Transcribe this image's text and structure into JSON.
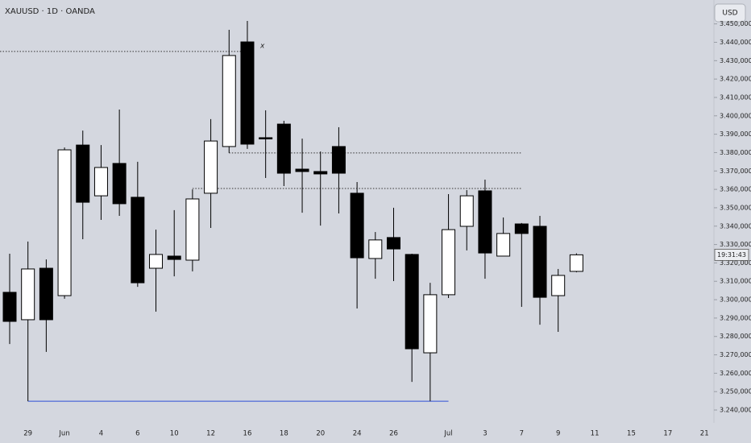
{
  "chart_data": {
    "type": "candlestick",
    "title": "XAUUSD · 1D · OANDA",
    "currency": "USD",
    "countdown": "19:31:43",
    "annotation": "x",
    "up_color": "#ffffff",
    "down_color": "#000000",
    "categories": [
      null,
      "29",
      null,
      "Jun",
      null,
      "4",
      null,
      "6",
      null,
      "10",
      null,
      "12",
      null,
      "16",
      null,
      "18",
      null,
      "20",
      null,
      "24",
      null,
      "26",
      null,
      null,
      "Jul",
      null,
      "3",
      null,
      "7",
      null,
      "9",
      null,
      "11",
      null,
      "15",
      null,
      "17",
      null,
      "21"
    ],
    "open": [
      3304.0,
      3289.1,
      3317.1,
      3302.2,
      3384.1,
      3356.5,
      3374.1,
      3355.7,
      3317.1,
      3323.7,
      3321.5,
      3357.9,
      3383.3,
      3440.2,
      3388.1,
      3395.5,
      3371.0,
      3369.7,
      3383.3,
      3357.9,
      3322.4,
      3333.8,
      3324.6,
      3271.1,
      3302.7,
      3339.9,
      3359.2,
      3323.7,
      3341.2,
      3339.9,
      3302.2,
      3315.4,
      null,
      null,
      null,
      null,
      null,
      null,
      null
    ],
    "high": [
      3325.0,
      3331.6,
      3321.9,
      3382.8,
      3392.0,
      3384.1,
      3403.4,
      3375.0,
      3338.1,
      3348.7,
      3360.0,
      3398.2,
      3446.8,
      3451.6,
      3403.0,
      3397.3,
      3387.6,
      3380.6,
      3393.8,
      3364.0,
      3336.8,
      3350.0,
      3325.0,
      3309.2,
      3357.4,
      3359.6,
      3365.3,
      3344.7,
      3341.7,
      3345.6,
      3316.7,
      3325.2,
      null,
      null,
      null,
      null,
      null,
      null,
      null
    ],
    "low": [
      3275.9,
      3244.8,
      3271.6,
      3300.5,
      3332.9,
      3343.4,
      3345.6,
      3307.0,
      3293.5,
      3312.7,
      3315.4,
      3339.0,
      3379.8,
      3382.0,
      3366.2,
      3361.8,
      3347.3,
      3340.3,
      3346.9,
      3295.2,
      3311.4,
      3310.1,
      3255.3,
      3244.8,
      3300.9,
      3326.8,
      3311.4,
      3323.7,
      3296.1,
      3286.4,
      3282.5,
      3314.9,
      null,
      null,
      null,
      null,
      null,
      null,
      null
    ],
    "close": [
      3288.2,
      3316.7,
      3289.1,
      3381.5,
      3353.0,
      3371.9,
      3352.2,
      3309.2,
      3324.6,
      3321.9,
      3354.8,
      3386.3,
      3432.8,
      3384.6,
      3387.6,
      3368.8,
      3369.7,
      3368.4,
      3368.8,
      3322.8,
      3332.5,
      3327.6,
      3273.3,
      3302.7,
      3338.1,
      3356.5,
      3325.4,
      3336.0,
      3336.0,
      3301.3,
      3313.2,
      3324.4,
      null,
      null,
      null,
      null,
      null,
      null,
      null
    ],
    "levels": [
      {
        "value": 3435.0,
        "from": 0,
        "to": 13,
        "style": "dotted",
        "color": "#333333"
      },
      {
        "value": 3379.8,
        "from": 12,
        "to": 28,
        "style": "dotted",
        "color": "#333333"
      },
      {
        "value": 3360.5,
        "from": 10,
        "to": 28,
        "style": "dotted",
        "color": "#333333"
      },
      {
        "value": 3244.8,
        "from": 1,
        "to": 24,
        "style": "solid",
        "color": "#2f4fd6"
      }
    ],
    "ylim": [
      3233,
      3463
    ],
    "yticks": [
      {
        "value": 3240,
        "label": "3.240,000"
      },
      {
        "value": 3250,
        "label": "3.250,000"
      },
      {
        "value": 3260,
        "label": "3.260,000"
      },
      {
        "value": 3270,
        "label": "3.270,000"
      },
      {
        "value": 3280,
        "label": "3.280,000"
      },
      {
        "value": 3290,
        "label": "3.290,000"
      },
      {
        "value": 3300,
        "label": "3.300,000"
      },
      {
        "value": 3310,
        "label": "3.310,000"
      },
      {
        "value": 3320,
        "label": "3.320,000"
      },
      {
        "value": 3330,
        "label": "3.330,000"
      },
      {
        "value": 3340,
        "label": "3.340,000"
      },
      {
        "value": 3350,
        "label": "3.350,000"
      },
      {
        "value": 3360,
        "label": "3.360,000"
      },
      {
        "value": 3370,
        "label": "3.370,000"
      },
      {
        "value": 3380,
        "label": "3.380,000"
      },
      {
        "value": 3390,
        "label": "3.390,000"
      },
      {
        "value": 3400,
        "label": "3.400,000"
      },
      {
        "value": 3410,
        "label": "3.410,000"
      },
      {
        "value": 3420,
        "label": "3.420,000"
      },
      {
        "value": 3430,
        "label": "3.430,000"
      },
      {
        "value": 3440,
        "label": "3.440,000"
      },
      {
        "value": 3450,
        "label": "3.450,000"
      }
    ]
  }
}
